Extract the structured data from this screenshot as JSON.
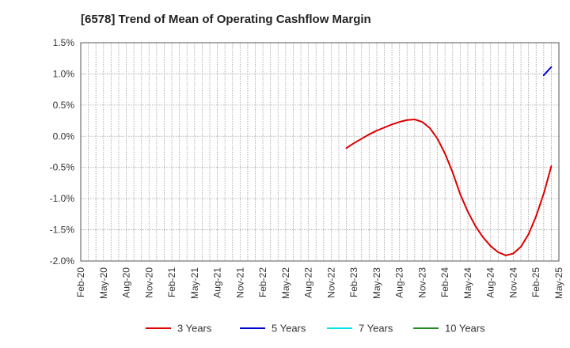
{
  "chart_data": {
    "type": "line",
    "title": "[6578]  Trend of Mean of Operating Cashflow Margin",
    "xlabel": "",
    "ylabel": "",
    "ylim": [
      -2.0,
      1.5
    ],
    "xlim": [
      "2020-02",
      "2025-05"
    ],
    "y_ticks": [
      {
        "value": 1.5,
        "label": "1.5%"
      },
      {
        "value": 1.0,
        "label": "1.0%"
      },
      {
        "value": 0.5,
        "label": "0.5%"
      },
      {
        "value": 0.0,
        "label": "0.0%"
      },
      {
        "value": -0.5,
        "label": "-0.5%"
      },
      {
        "value": -1.0,
        "label": "-1.0%"
      },
      {
        "value": -1.5,
        "label": "-1.5%"
      },
      {
        "value": -2.0,
        "label": "-2.0%"
      }
    ],
    "x_ticks": [
      "Feb-20",
      "May-20",
      "Aug-20",
      "Nov-20",
      "Feb-21",
      "May-21",
      "Aug-21",
      "Nov-21",
      "Feb-22",
      "May-22",
      "Aug-22",
      "Nov-22",
      "Feb-23",
      "May-23",
      "Aug-23",
      "Nov-23",
      "Feb-24",
      "May-24",
      "Aug-24",
      "Nov-24",
      "Feb-25",
      "May-25"
    ],
    "grid": true,
    "legend_position": "bottom",
    "series": [
      {
        "name": "3 Years",
        "color": "#dd0000",
        "points": [
          [
            "2023-01",
            -0.19
          ],
          [
            "2023-02",
            -0.11
          ],
          [
            "2023-03",
            -0.04
          ],
          [
            "2023-04",
            0.03
          ],
          [
            "2023-05",
            0.09
          ],
          [
            "2023-06",
            0.14
          ],
          [
            "2023-07",
            0.19
          ],
          [
            "2023-08",
            0.23
          ],
          [
            "2023-09",
            0.26
          ],
          [
            "2023-10",
            0.27
          ],
          [
            "2023-11",
            0.23
          ],
          [
            "2023-12",
            0.13
          ],
          [
            "2024-01",
            -0.04
          ],
          [
            "2024-02",
            -0.28
          ],
          [
            "2024-03",
            -0.58
          ],
          [
            "2024-04",
            -0.93
          ],
          [
            "2024-05",
            -1.21
          ],
          [
            "2024-06",
            -1.44
          ],
          [
            "2024-07",
            -1.62
          ],
          [
            "2024-08",
            -1.76
          ],
          [
            "2024-09",
            -1.86
          ],
          [
            "2024-10",
            -1.91
          ],
          [
            "2024-11",
            -1.88
          ],
          [
            "2024-12",
            -1.77
          ],
          [
            "2025-01",
            -1.57
          ],
          [
            "2025-02",
            -1.28
          ],
          [
            "2025-03",
            -0.92
          ],
          [
            "2025-04",
            -0.48
          ]
        ]
      },
      {
        "name": "5 Years",
        "color": "#0000cc",
        "points": [
          [
            "2025-03",
            0.98
          ],
          [
            "2025-04",
            1.11
          ]
        ]
      },
      {
        "name": "7 Years",
        "color": "#00e5ee",
        "points": []
      },
      {
        "name": "10 Years",
        "color": "#228b22",
        "points": []
      }
    ]
  }
}
